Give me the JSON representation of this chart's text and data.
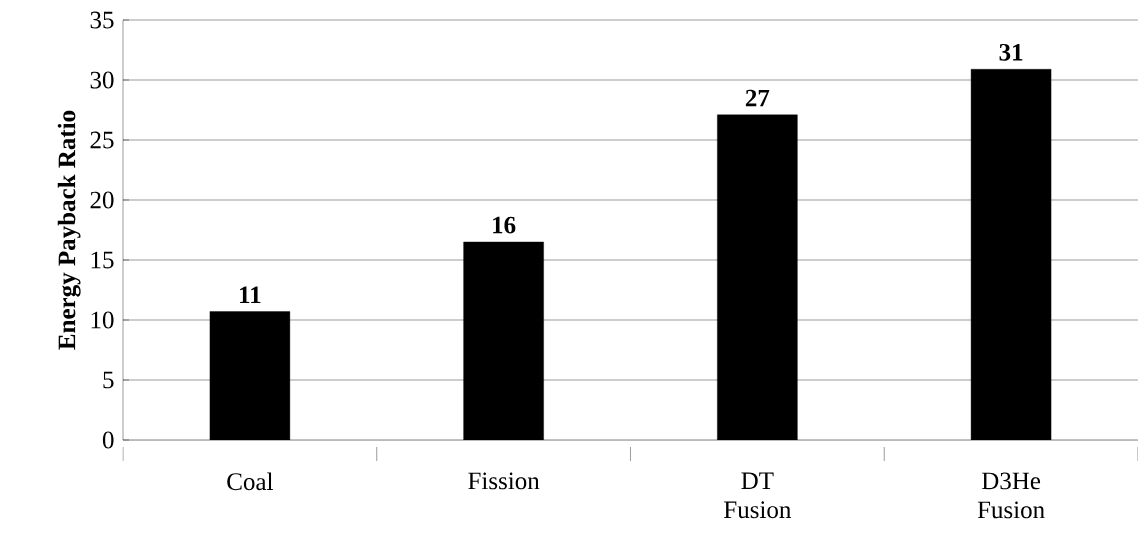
{
  "chart_data": {
    "type": "bar",
    "ylabel": "Energy Payback Ratio",
    "categories": [
      "Coal",
      "Fission",
      "DT Fusion",
      "D3He Fusion"
    ],
    "values": [
      10.7,
      16.5,
      27.1,
      30.9
    ],
    "value_labels": [
      "11",
      "16",
      "27",
      "31"
    ],
    "color": "#000000",
    "ylim": [
      0,
      35
    ],
    "yticks": [
      0,
      5,
      10,
      15,
      20,
      25,
      30,
      35
    ],
    "grid": "y"
  }
}
